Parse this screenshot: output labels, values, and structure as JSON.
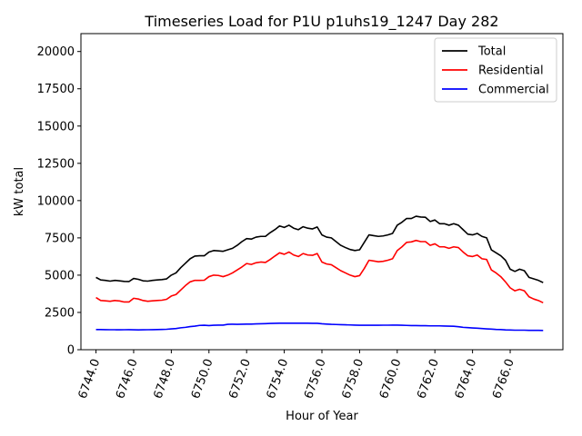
{
  "chart_data": {
    "type": "line",
    "title": "Timeseries Load for P1U p1uhs19_1247  Day 282",
    "xlabel": "Hour of Year",
    "ylabel": "kW total",
    "xlim": [
      6743.2,
      6768.8
    ],
    "ylim": [
      0,
      21200
    ],
    "xticks": [
      6744,
      6746,
      6748,
      6750,
      6752,
      6754,
      6756,
      6758,
      6760,
      6762,
      6764,
      6766
    ],
    "xtick_labels": [
      "6744.0",
      "6746.0",
      "6748.0",
      "6750.0",
      "6752.0",
      "6754.0",
      "6756.0",
      "6758.0",
      "6760.0",
      "6762.0",
      "6764.0",
      "6766.0"
    ],
    "yticks": [
      0,
      2500,
      5000,
      7500,
      10000,
      12500,
      15000,
      17500,
      20000
    ],
    "ytick_labels": [
      "0",
      "2500",
      "5000",
      "7500",
      "10000",
      "12500",
      "15000",
      "17500",
      "20000"
    ],
    "legend_position": "top-right",
    "grid": false,
    "x": [
      6744,
      6744.25,
      6744.5,
      6744.75,
      6745,
      6745.25,
      6745.5,
      6745.75,
      6746,
      6746.25,
      6746.5,
      6746.75,
      6747,
      6747.25,
      6747.5,
      6747.75,
      6748,
      6748.25,
      6748.5,
      6748.75,
      6749,
      6749.25,
      6749.5,
      6749.75,
      6750,
      6750.25,
      6750.5,
      6750.75,
      6751,
      6751.25,
      6751.5,
      6751.75,
      6752,
      6752.25,
      6752.5,
      6752.75,
      6753,
      6753.25,
      6753.5,
      6753.75,
      6754,
      6754.25,
      6754.5,
      6754.75,
      6755,
      6755.25,
      6755.5,
      6755.75,
      6756,
      6756.25,
      6756.5,
      6756.75,
      6757,
      6757.25,
      6757.5,
      6757.75,
      6758,
      6758.25,
      6758.5,
      6758.75,
      6759,
      6759.25,
      6759.5,
      6759.75,
      6760,
      6760.25,
      6760.5,
      6760.75,
      6761,
      6761.25,
      6761.5,
      6761.75,
      6762,
      6762.25,
      6762.5,
      6762.75,
      6763,
      6763.25,
      6763.5,
      6763.75,
      6764,
      6764.25,
      6764.5,
      6764.75,
      6765,
      6765.25,
      6765.5,
      6765.75,
      6766,
      6766.25,
      6766.5,
      6766.75,
      6767,
      6767.25,
      6767.5,
      6767.75
    ],
    "series": [
      {
        "name": "Total",
        "color": "#000000",
        "values": [
          4850,
          4680,
          4650,
          4600,
          4650,
          4620,
          4580,
          4570,
          4780,
          4720,
          4620,
          4600,
          4650,
          4680,
          4700,
          4750,
          5000,
          5150,
          5500,
          5800,
          6100,
          6280,
          6300,
          6300,
          6550,
          6650,
          6630,
          6600,
          6700,
          6800,
          7000,
          7250,
          7450,
          7420,
          7550,
          7600,
          7600,
          7850,
          8050,
          8300,
          8200,
          8350,
          8150,
          8050,
          8250,
          8150,
          8100,
          8230,
          7700,
          7550,
          7500,
          7250,
          7000,
          6850,
          6720,
          6650,
          6700,
          7200,
          7700,
          7650,
          7600,
          7630,
          7700,
          7800,
          8350,
          8550,
          8800,
          8800,
          8950,
          8900,
          8880,
          8600,
          8700,
          8450,
          8450,
          8350,
          8450,
          8350,
          8050,
          7750,
          7700,
          7800,
          7600,
          7500,
          6700,
          6500,
          6300,
          6000,
          5400,
          5250,
          5400,
          5300,
          4850,
          4750,
          4650,
          4500
        ]
      },
      {
        "name": "Residential",
        "color": "#ff0000",
        "values": [
          3500,
          3300,
          3280,
          3250,
          3300,
          3270,
          3200,
          3200,
          3450,
          3400,
          3300,
          3250,
          3280,
          3300,
          3320,
          3380,
          3600,
          3700,
          4000,
          4300,
          4550,
          4650,
          4650,
          4660,
          4900,
          5000,
          4980,
          4900,
          5000,
          5150,
          5350,
          5550,
          5780,
          5720,
          5830,
          5880,
          5850,
          6050,
          6280,
          6500,
          6400,
          6550,
          6350,
          6250,
          6450,
          6350,
          6330,
          6450,
          5880,
          5750,
          5700,
          5500,
          5300,
          5150,
          5000,
          4900,
          4970,
          5450,
          6000,
          5950,
          5900,
          5930,
          6000,
          6100,
          6650,
          6900,
          7200,
          7230,
          7330,
          7250,
          7250,
          7000,
          7100,
          6900,
          6900,
          6800,
          6900,
          6850,
          6550,
          6300,
          6250,
          6350,
          6100,
          6050,
          5350,
          5150,
          4900,
          4550,
          4150,
          3950,
          4050,
          3950,
          3550,
          3400,
          3300,
          3150
        ]
      },
      {
        "name": "Commercial",
        "color": "#0000ff",
        "values": [
          1350,
          1350,
          1345,
          1340,
          1340,
          1335,
          1340,
          1345,
          1335,
          1330,
          1335,
          1340,
          1345,
          1350,
          1360,
          1370,
          1400,
          1420,
          1470,
          1500,
          1550,
          1580,
          1630,
          1640,
          1620,
          1640,
          1650,
          1650,
          1700,
          1710,
          1700,
          1710,
          1720,
          1720,
          1730,
          1740,
          1750,
          1760,
          1770,
          1775,
          1780,
          1780,
          1780,
          1775,
          1775,
          1775,
          1770,
          1770,
          1740,
          1720,
          1700,
          1690,
          1680,
          1670,
          1660,
          1650,
          1640,
          1640,
          1640,
          1640,
          1640,
          1645,
          1645,
          1650,
          1650,
          1640,
          1630,
          1620,
          1620,
          1610,
          1610,
          1600,
          1600,
          1600,
          1590,
          1580,
          1570,
          1540,
          1500,
          1480,
          1460,
          1440,
          1420,
          1400,
          1380,
          1360,
          1350,
          1330,
          1320,
          1310,
          1310,
          1310,
          1300,
          1300,
          1300,
          1290
        ]
      }
    ]
  }
}
